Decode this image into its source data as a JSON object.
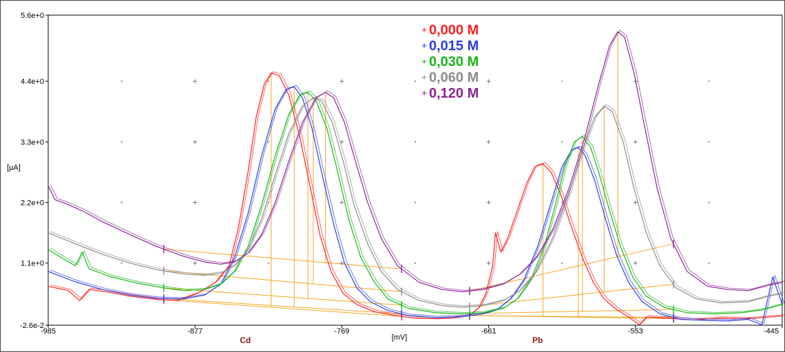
{
  "chart_data": {
    "type": "line",
    "title": "",
    "xlabel": "[mV]",
    "ylabel": "[µA]",
    "xlim": [
      -985,
      -445
    ],
    "ylim": [
      -0.026,
      5.6
    ],
    "grid": "dots",
    "x_ticks": [
      "-985",
      "-877",
      "-769",
      "-661",
      "-553",
      "-445"
    ],
    "y_ticks": [
      "5.6e+0",
      "4.4e+0",
      "3.3e+0",
      "2.2e+0",
      "1.1e+0",
      "-2.6e-2"
    ],
    "peak_labels": [
      {
        "label": "Cd",
        "x": -840
      },
      {
        "label": "Pb",
        "x": -625
      }
    ],
    "legend_marker": "+",
    "legend_position": "top-center",
    "baseline_color": "#f5a623",
    "series": [
      {
        "name": "0,000 M",
        "color": "#ff2020",
        "points": [
          [
            -985,
            0.68
          ],
          [
            -970,
            0.6
          ],
          [
            -962,
            0.42
          ],
          [
            -955,
            0.62
          ],
          [
            -940,
            0.57
          ],
          [
            -925,
            0.5
          ],
          [
            -905,
            0.44
          ],
          [
            -890,
            0.42
          ],
          [
            -875,
            0.55
          ],
          [
            -862,
            0.75
          ],
          [
            -852,
            1.05
          ],
          [
            -845,
            1.75
          ],
          [
            -838,
            2.75
          ],
          [
            -832,
            3.75
          ],
          [
            -826,
            4.35
          ],
          [
            -821,
            4.55
          ],
          [
            -815,
            4.5
          ],
          [
            -808,
            4.15
          ],
          [
            -800,
            3.4
          ],
          [
            -792,
            2.45
          ],
          [
            -785,
            1.6
          ],
          [
            -777,
            0.95
          ],
          [
            -768,
            0.55
          ],
          [
            -758,
            0.35
          ],
          [
            -745,
            0.22
          ],
          [
            -730,
            0.15
          ],
          [
            -715,
            0.1
          ],
          [
            -700,
            0.09
          ],
          [
            -688,
            0.1
          ],
          [
            -675,
            0.15
          ],
          [
            -668,
            0.3
          ],
          [
            -663,
            0.55
          ],
          [
            -658,
            1.05
          ],
          [
            -656,
            1.65
          ],
          [
            -652,
            1.3
          ],
          [
            -647,
            1.55
          ],
          [
            -640,
            2.05
          ],
          [
            -633,
            2.55
          ],
          [
            -627,
            2.85
          ],
          [
            -621,
            2.9
          ],
          [
            -615,
            2.75
          ],
          [
            -608,
            2.35
          ],
          [
            -600,
            1.75
          ],
          [
            -592,
            1.2
          ],
          [
            -584,
            0.75
          ],
          [
            -576,
            0.45
          ],
          [
            -568,
            0.28
          ],
          [
            -558,
            0.12
          ],
          [
            -550,
            -0.02
          ],
          [
            -545,
            0.12
          ],
          [
            -530,
            0.1
          ],
          [
            -510,
            0.07
          ],
          [
            -490,
            0.1
          ],
          [
            -470,
            0.09
          ],
          [
            -445,
            0.14
          ]
        ]
      },
      {
        "name": "0,015 M",
        "color": "#2a3fe0",
        "points": [
          [
            -985,
            0.95
          ],
          [
            -965,
            0.76
          ],
          [
            -945,
            0.62
          ],
          [
            -925,
            0.52
          ],
          [
            -905,
            0.46
          ],
          [
            -885,
            0.45
          ],
          [
            -870,
            0.52
          ],
          [
            -858,
            0.72
          ],
          [
            -848,
            1.2
          ],
          [
            -838,
            2.0
          ],
          [
            -828,
            3.05
          ],
          [
            -818,
            3.9
          ],
          [
            -810,
            4.25
          ],
          [
            -804,
            4.3
          ],
          [
            -798,
            4.1
          ],
          [
            -791,
            3.55
          ],
          [
            -783,
            2.65
          ],
          [
            -775,
            1.8
          ],
          [
            -767,
            1.1
          ],
          [
            -758,
            0.65
          ],
          [
            -748,
            0.4
          ],
          [
            -735,
            0.24
          ],
          [
            -720,
            0.15
          ],
          [
            -700,
            0.11
          ],
          [
            -680,
            0.13
          ],
          [
            -665,
            0.18
          ],
          [
            -655,
            0.25
          ],
          [
            -645,
            0.45
          ],
          [
            -635,
            0.8
          ],
          [
            -625,
            1.4
          ],
          [
            -615,
            2.2
          ],
          [
            -607,
            2.85
          ],
          [
            -600,
            3.15
          ],
          [
            -595,
            3.2
          ],
          [
            -590,
            3.05
          ],
          [
            -583,
            2.6
          ],
          [
            -575,
            1.9
          ],
          [
            -567,
            1.25
          ],
          [
            -558,
            0.75
          ],
          [
            -548,
            0.4
          ],
          [
            -535,
            0.18
          ],
          [
            -520,
            0.08
          ],
          [
            -500,
            0.06
          ],
          [
            -485,
            0.05
          ],
          [
            -470,
            0.08
          ],
          [
            -460,
            -0.02
          ],
          [
            -452,
            0.85
          ],
          [
            -445,
            0.35
          ]
        ]
      },
      {
        "name": "0,030 M",
        "color": "#18b418",
        "points": [
          [
            -985,
            1.35
          ],
          [
            -972,
            1.15
          ],
          [
            -965,
            1.05
          ],
          [
            -960,
            1.3
          ],
          [
            -955,
            1.0
          ],
          [
            -940,
            0.86
          ],
          [
            -920,
            0.74
          ],
          [
            -900,
            0.65
          ],
          [
            -885,
            0.6
          ],
          [
            -870,
            0.62
          ],
          [
            -858,
            0.72
          ],
          [
            -848,
            0.95
          ],
          [
            -838,
            1.4
          ],
          [
            -828,
            2.15
          ],
          [
            -818,
            3.05
          ],
          [
            -808,
            3.8
          ],
          [
            -800,
            4.15
          ],
          [
            -794,
            4.2
          ],
          [
            -788,
            4.05
          ],
          [
            -780,
            3.55
          ],
          [
            -772,
            2.75
          ],
          [
            -764,
            1.9
          ],
          [
            -755,
            1.2
          ],
          [
            -745,
            0.75
          ],
          [
            -735,
            0.45
          ],
          [
            -720,
            0.28
          ],
          [
            -700,
            0.2
          ],
          [
            -680,
            0.18
          ],
          [
            -665,
            0.2
          ],
          [
            -650,
            0.28
          ],
          [
            -640,
            0.45
          ],
          [
            -630,
            0.8
          ],
          [
            -620,
            1.4
          ],
          [
            -612,
            2.15
          ],
          [
            -605,
            2.85
          ],
          [
            -598,
            3.3
          ],
          [
            -592,
            3.4
          ],
          [
            -586,
            3.2
          ],
          [
            -580,
            2.75
          ],
          [
            -572,
            2.05
          ],
          [
            -564,
            1.4
          ],
          [
            -555,
            0.85
          ],
          [
            -545,
            0.5
          ],
          [
            -532,
            0.3
          ],
          [
            -515,
            0.2
          ],
          [
            -495,
            0.18
          ],
          [
            -475,
            0.2
          ],
          [
            -460,
            0.25
          ],
          [
            -445,
            0.35
          ]
        ]
      },
      {
        "name": "0,060 M",
        "color": "#8c8c8c",
        "points": [
          [
            -985,
            1.65
          ],
          [
            -965,
            1.45
          ],
          [
            -945,
            1.26
          ],
          [
            -925,
            1.1
          ],
          [
            -905,
            0.98
          ],
          [
            -885,
            0.9
          ],
          [
            -870,
            0.88
          ],
          [
            -858,
            0.92
          ],
          [
            -848,
            1.05
          ],
          [
            -838,
            1.35
          ],
          [
            -828,
            1.9
          ],
          [
            -818,
            2.7
          ],
          [
            -808,
            3.45
          ],
          [
            -798,
            3.95
          ],
          [
            -790,
            4.1
          ],
          [
            -784,
            4.05
          ],
          [
            -776,
            3.65
          ],
          [
            -768,
            2.95
          ],
          [
            -760,
            2.15
          ],
          [
            -750,
            1.45
          ],
          [
            -740,
            0.95
          ],
          [
            -728,
            0.62
          ],
          [
            -712,
            0.42
          ],
          [
            -695,
            0.33
          ],
          [
            -680,
            0.3
          ],
          [
            -665,
            0.33
          ],
          [
            -650,
            0.42
          ],
          [
            -638,
            0.6
          ],
          [
            -626,
            0.95
          ],
          [
            -614,
            1.55
          ],
          [
            -602,
            2.35
          ],
          [
            -592,
            3.15
          ],
          [
            -583,
            3.75
          ],
          [
            -576,
            3.95
          ],
          [
            -570,
            3.85
          ],
          [
            -562,
            3.3
          ],
          [
            -554,
            2.45
          ],
          [
            -545,
            1.65
          ],
          [
            -535,
            1.05
          ],
          [
            -523,
            0.65
          ],
          [
            -508,
            0.45
          ],
          [
            -490,
            0.38
          ],
          [
            -470,
            0.4
          ],
          [
            -455,
            0.5
          ],
          [
            -445,
            0.55
          ]
        ]
      },
      {
        "name": "0,120 M",
        "color": "#8a2596",
        "points": [
          [
            -985,
            2.5
          ],
          [
            -980,
            2.25
          ],
          [
            -972,
            2.18
          ],
          [
            -960,
            2.05
          ],
          [
            -945,
            1.85
          ],
          [
            -925,
            1.62
          ],
          [
            -905,
            1.4
          ],
          [
            -885,
            1.22
          ],
          [
            -870,
            1.12
          ],
          [
            -858,
            1.08
          ],
          [
            -848,
            1.12
          ],
          [
            -838,
            1.28
          ],
          [
            -828,
            1.62
          ],
          [
            -818,
            2.2
          ],
          [
            -808,
            2.95
          ],
          [
            -798,
            3.65
          ],
          [
            -788,
            4.1
          ],
          [
            -781,
            4.2
          ],
          [
            -775,
            4.1
          ],
          [
            -767,
            3.65
          ],
          [
            -759,
            2.95
          ],
          [
            -750,
            2.2
          ],
          [
            -740,
            1.55
          ],
          [
            -728,
            1.05
          ],
          [
            -712,
            0.75
          ],
          [
            -695,
            0.62
          ],
          [
            -680,
            0.58
          ],
          [
            -665,
            0.62
          ],
          [
            -650,
            0.72
          ],
          [
            -638,
            0.9
          ],
          [
            -626,
            1.2
          ],
          [
            -614,
            1.7
          ],
          [
            -602,
            2.45
          ],
          [
            -590,
            3.4
          ],
          [
            -580,
            4.35
          ],
          [
            -572,
            5.05
          ],
          [
            -566,
            5.3
          ],
          [
            -561,
            5.2
          ],
          [
            -554,
            4.55
          ],
          [
            -546,
            3.55
          ],
          [
            -537,
            2.45
          ],
          [
            -527,
            1.55
          ],
          [
            -515,
            0.95
          ],
          [
            -500,
            0.68
          ],
          [
            -485,
            0.62
          ],
          [
            -470,
            0.6
          ],
          [
            -455,
            0.7
          ],
          [
            -445,
            0.75
          ]
        ]
      }
    ]
  }
}
